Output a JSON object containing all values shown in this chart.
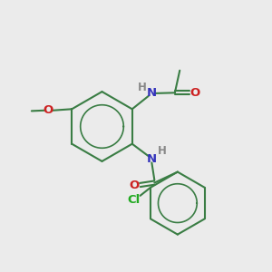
{
  "bg_color": "#ebebeb",
  "bond_color": "#3a7d44",
  "N_color": "#3333bb",
  "O_color": "#cc2222",
  "Cl_color": "#22aa22",
  "H_color": "#888888",
  "font_size": 9.5,
  "small_font_size": 8.5,
  "line_width": 1.5,
  "figsize": [
    3.0,
    3.0
  ],
  "dpi": 100,
  "xlim": [
    0,
    10
  ],
  "ylim": [
    0,
    10
  ]
}
